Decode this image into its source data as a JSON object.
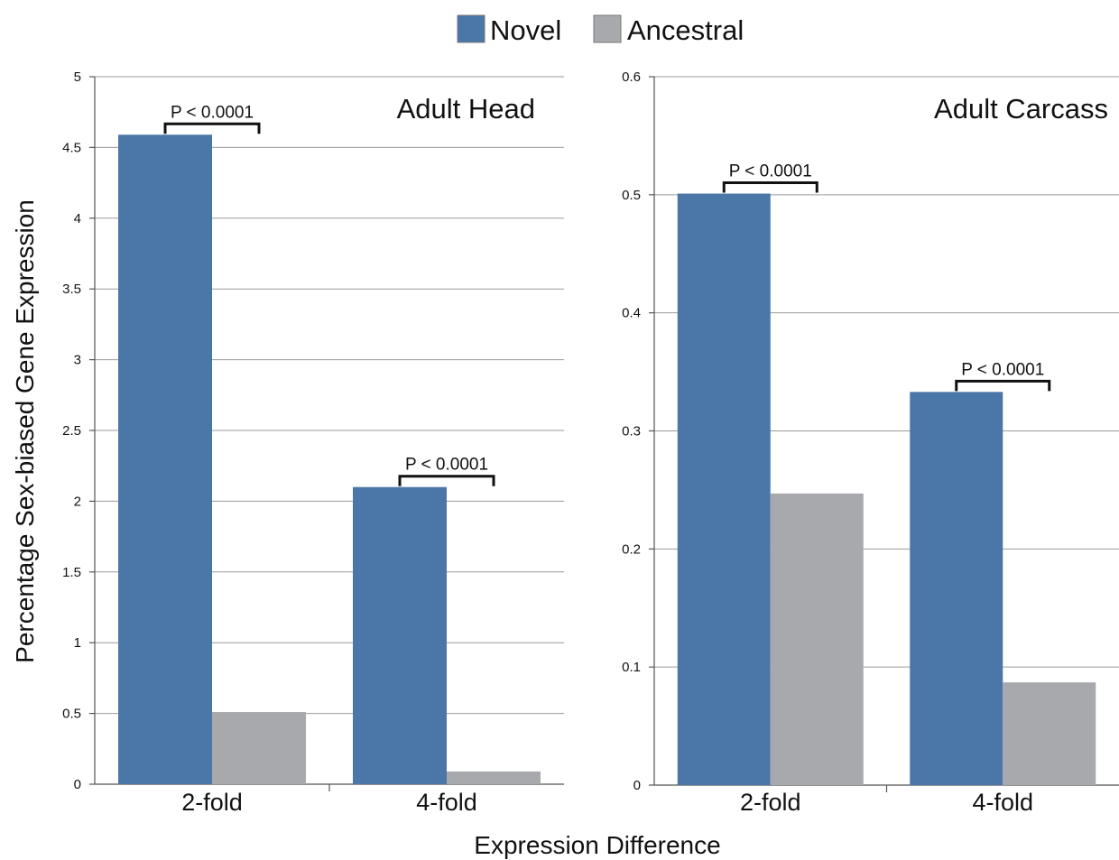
{
  "chart_data": {
    "type": "bar",
    "legend": {
      "position": "top-center",
      "entries": [
        {
          "name": "Novel",
          "color": "#4a76a8"
        },
        {
          "name": "Ancestral",
          "color": "#a8a9ad"
        }
      ]
    },
    "xlabel": "Expression Difference",
    "ylabel": "Percentage Sex-biased Gene Expression",
    "grid": true,
    "panels": [
      {
        "title": "Adult Head",
        "categories": [
          "2-fold",
          "4-fold"
        ],
        "ylim": [
          0,
          5
        ],
        "yticks": [
          "0",
          "0.5",
          "1",
          "1.5",
          "2",
          "2.5",
          "3",
          "3.5",
          "4",
          "4.5",
          "5"
        ],
        "series": [
          {
            "name": "Novel",
            "values": [
              4.59,
              2.1
            ]
          },
          {
            "name": "Ancestral",
            "values": [
              0.51,
              0.09
            ]
          }
        ],
        "annotations": [
          "P < 0.0001",
          "P < 0.0001"
        ]
      },
      {
        "title": "Adult Carcass",
        "categories": [
          "2-fold",
          "4-fold"
        ],
        "ylim": [
          0,
          0.6
        ],
        "yticks": [
          "0",
          "0.1",
          "0.2",
          "0.3",
          "0.4",
          "0.5",
          "0.6"
        ],
        "series": [
          {
            "name": "Novel",
            "values": [
              0.501,
              0.333
            ]
          },
          {
            "name": "Ancestral",
            "values": [
              0.247,
              0.087
            ]
          }
        ],
        "annotations": [
          "P < 0.0001",
          "P < 0.0001"
        ]
      }
    ]
  }
}
